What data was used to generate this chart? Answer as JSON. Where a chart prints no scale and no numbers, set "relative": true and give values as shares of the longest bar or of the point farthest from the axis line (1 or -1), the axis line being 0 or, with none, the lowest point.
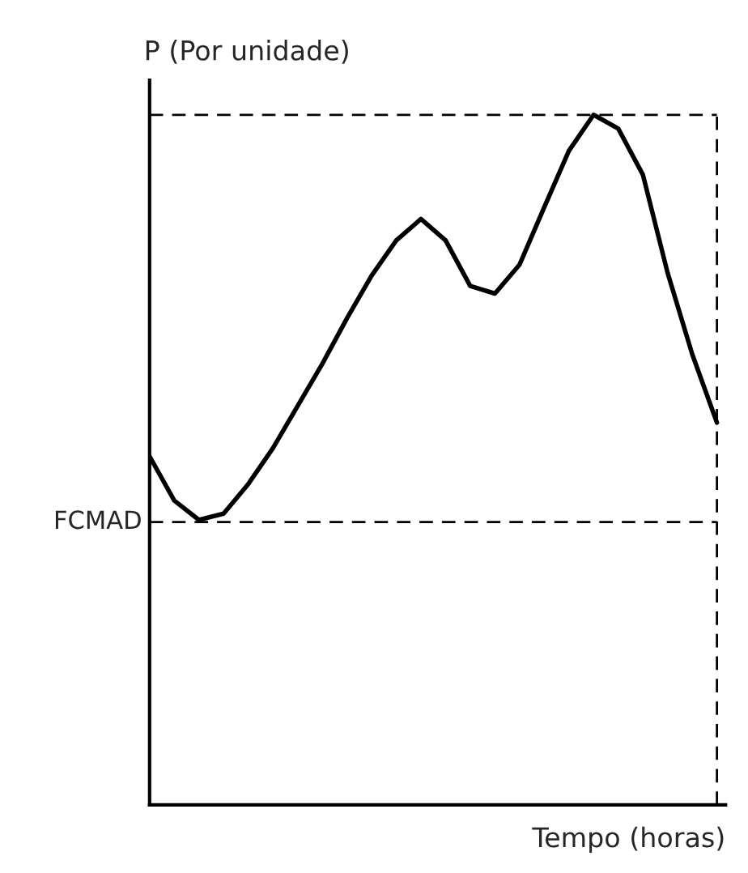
{
  "chart_data": {
    "type": "line",
    "relative": true,
    "xlabel": "Tempo (horas)",
    "ylabel": "P (Por unidade)",
    "categories": [
      null,
      null,
      null,
      null,
      null,
      null,
      null,
      null,
      null,
      null,
      null,
      null,
      null,
      null,
      null,
      null,
      null,
      null,
      null,
      null,
      null,
      null,
      null,
      null
    ],
    "series": [
      {
        "color": "#000000",
        "values": [
          0.505,
          0.441,
          0.413,
          0.422,
          0.465,
          0.517,
          0.578,
          0.639,
          0.705,
          0.767,
          0.818,
          0.849,
          0.818,
          0.752,
          0.741,
          0.783,
          0.866,
          0.948,
          1.0,
          0.98,
          0.913,
          0.771,
          0.653,
          0.554
        ]
      }
    ],
    "ref_lines": [
      {
        "axis": "y",
        "value": 0.41,
        "label": "FCMAD",
        "line_style": "dashed"
      },
      {
        "axis": "y",
        "value": 1.0,
        "label": null,
        "line_style": "dashed"
      }
    ],
    "legend": false,
    "marker": "none",
    "line_style": "solid"
  }
}
